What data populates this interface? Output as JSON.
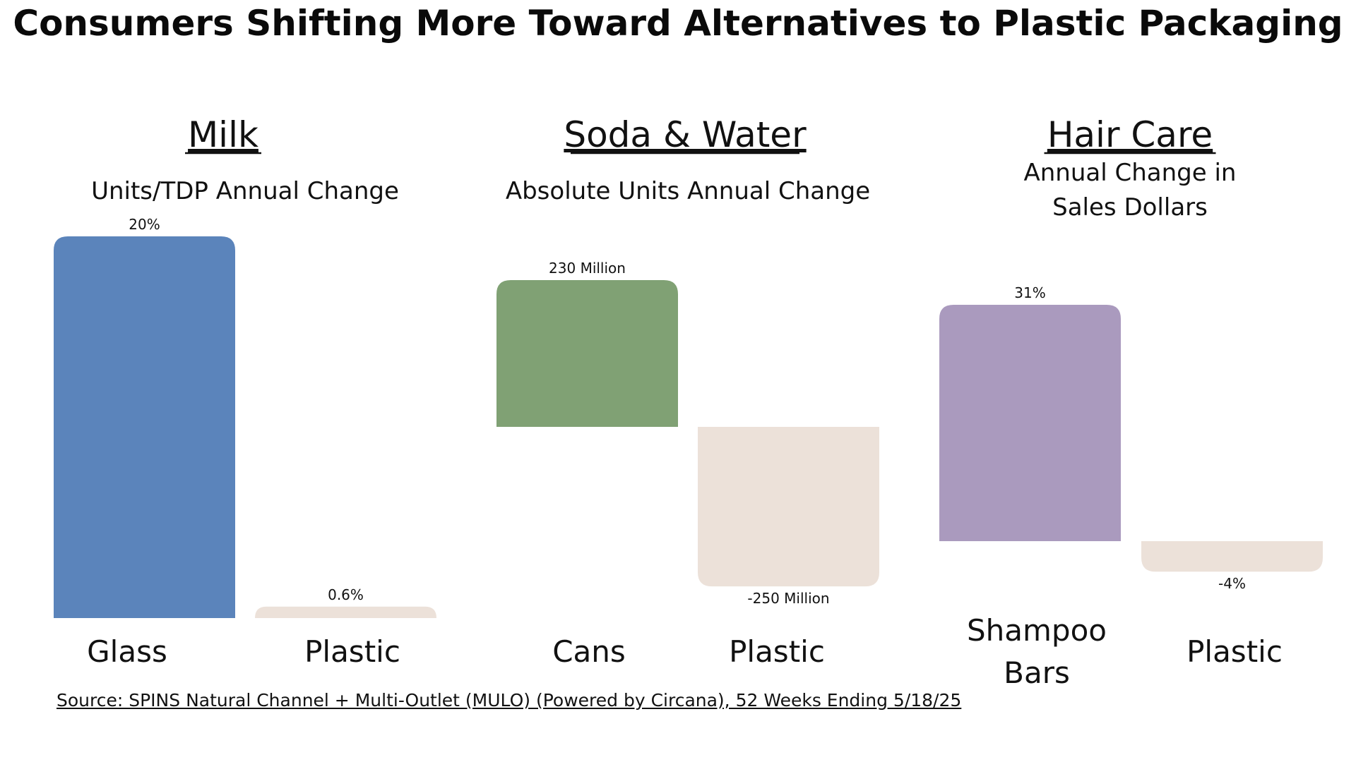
{
  "title": "Consumers Shifting More Toward Alternatives to Plastic Packaging",
  "source": "Source: SPINS Natural Channel + Multi-Outlet (MULO) (Powered by Circana), 52 Weeks Ending 5/18/25",
  "colors": {
    "glass": "#5b84bb",
    "cans": "#80a174",
    "shampoo_bars": "#aa9abe",
    "plastic": "#ece1d9",
    "text": "#111111"
  },
  "chart_data": [
    {
      "type": "bar",
      "title": "Milk",
      "subtitle": [
        "Units/TDP Annual Change"
      ],
      "categories": [
        "Glass",
        "Plastic"
      ],
      "values": [
        20,
        0.6
      ],
      "unit": "%",
      "data_labels": [
        "20%",
        "0.6%"
      ],
      "ylim": [
        0,
        20
      ],
      "grid": false,
      "legend": "none"
    },
    {
      "type": "bar",
      "title": "Soda & Water",
      "subtitle": [
        "Absolute Units Annual Change"
      ],
      "categories": [
        "Cans",
        "Plastic"
      ],
      "values": [
        230,
        -250
      ],
      "unit": "Million",
      "data_labels": [
        "230 Million",
        "-250 Million"
      ],
      "ylim": [
        -250,
        230
      ],
      "grid": false,
      "legend": "none"
    },
    {
      "type": "bar",
      "title": "Hair Care",
      "subtitle": [
        "Annual Change in",
        "Sales Dollars"
      ],
      "categories": [
        "Shampoo Bars",
        "Plastic"
      ],
      "category_lines": [
        [
          "Shampoo",
          "Bars"
        ],
        [
          "Plastic"
        ]
      ],
      "values": [
        31,
        -4
      ],
      "unit": "%",
      "data_labels": [
        "31%",
        "-4%"
      ],
      "ylim": [
        -4,
        31
      ],
      "grid": false,
      "legend": "none"
    }
  ]
}
